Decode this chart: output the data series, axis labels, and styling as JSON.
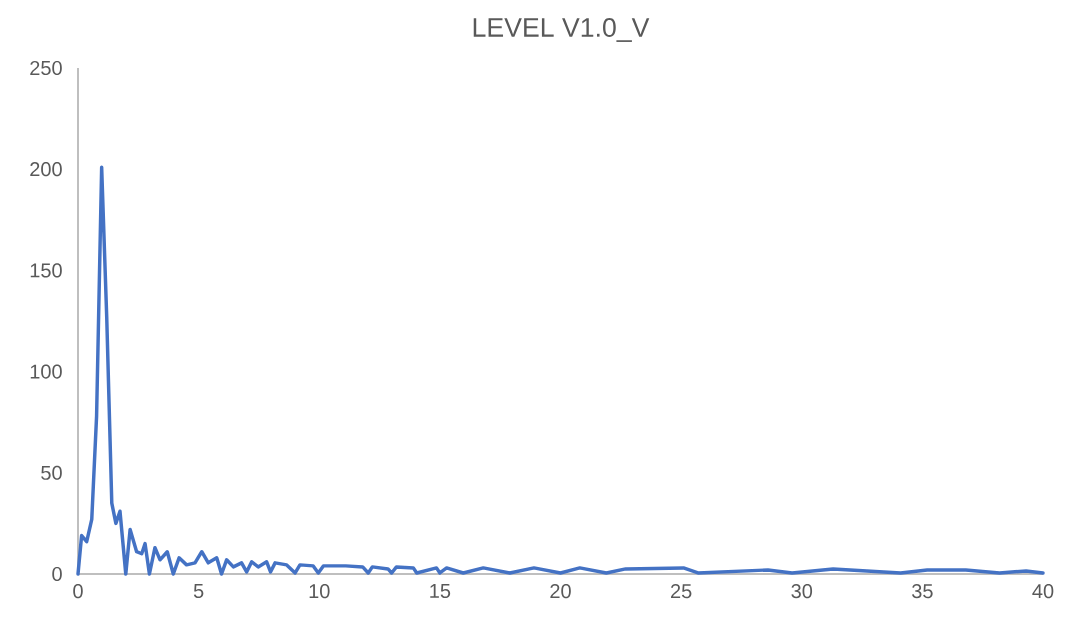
{
  "chart_data": {
    "type": "line",
    "title": "LEVEL V1.0_V",
    "color": "#4472c4",
    "x": [
      0,
      0.15,
      0.36,
      0.57,
      0.77,
      0.98,
      1.19,
      1.4,
      1.57,
      1.74,
      1.98,
      2.16,
      2.43,
      2.64,
      2.78,
      2.96,
      3.19,
      3.4,
      3.7,
      3.95,
      4.19,
      4.5,
      4.85,
      5.13,
      5.4,
      5.75,
      5.95,
      6.16,
      6.44,
      6.78,
      6.99,
      7.2,
      7.47,
      7.82,
      7.98,
      8.17,
      8.65,
      9.0,
      9.2,
      9.75,
      9.96,
      10.17,
      11.1,
      11.8,
      12.03,
      12.2,
      12.85,
      13.0,
      13.2,
      13.9,
      14.04,
      14.86,
      15.0,
      15.28,
      15.97,
      16.8,
      17.9,
      18.9,
      20.0,
      20.8,
      21.9,
      22.7,
      25.1,
      25.7,
      28.6,
      29.6,
      31.3,
      34.1,
      35.2,
      36.8,
      38.2,
      39.3,
      40
    ],
    "values": [
      0,
      19,
      16,
      27,
      78,
      201,
      127,
      35,
      25,
      31,
      0,
      22,
      11,
      10,
      15,
      0,
      13,
      7,
      11,
      0,
      8,
      4.5,
      5.5,
      11,
      5.5,
      8,
      0,
      7,
      3.5,
      5.5,
      1,
      6,
      3.5,
      6,
      1,
      5.5,
      4.5,
      0.5,
      4.5,
      4,
      0.5,
      4,
      4,
      3.5,
      0.5,
      3.5,
      2.5,
      0.5,
      3.5,
      3,
      0.5,
      3,
      0.5,
      3,
      0.5,
      3,
      0.5,
      3,
      0.5,
      3,
      0.5,
      2.5,
      3,
      0.5,
      2,
      0.5,
      2.5,
      0.5,
      2,
      2,
      0.5,
      1.5,
      0.5
    ],
    "xlim": [
      0,
      40
    ],
    "ylim": [
      0,
      250
    ],
    "xticks": [
      0,
      5,
      10,
      15,
      20,
      25,
      30,
      35,
      40
    ],
    "yticks": [
      0,
      50,
      100,
      150,
      200,
      250
    ]
  }
}
